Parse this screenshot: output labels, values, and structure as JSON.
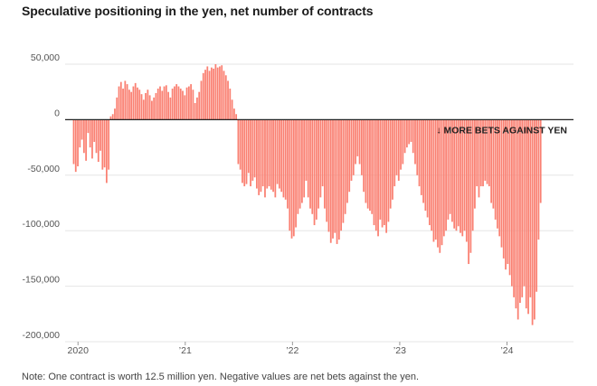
{
  "title": "Speculative positioning in the yen, net number of contracts",
  "note": "Note: One contract is worth 12.5 million yen. Negative values are net bets against the yen.",
  "colors": {
    "bar": "#fa8072",
    "zero_line": "#222222",
    "grid": "#e6e6e6",
    "text": "#555555"
  },
  "chart_data": {
    "type": "bar",
    "title": "Speculative positioning in the yen, net number of contracts",
    "xlabel": "",
    "ylabel": "",
    "ylim": [
      -200000,
      50000
    ],
    "yticks": [
      {
        "value": 50000,
        "label": "50,000"
      },
      {
        "value": 0,
        "label": "0"
      },
      {
        "value": -50000,
        "label": "-50,000"
      },
      {
        "value": -100000,
        "label": "-100,000"
      },
      {
        "value": -150000,
        "label": "-150,000"
      },
      {
        "value": -200000,
        "label": "-200,000"
      }
    ],
    "xrange": [
      2019.88,
      2024.62
    ],
    "xticks": [
      {
        "value": 2020,
        "label": "2020"
      },
      {
        "value": 2021,
        "label": "’21"
      },
      {
        "value": 2022,
        "label": "’22"
      },
      {
        "value": 2023,
        "label": "’23"
      },
      {
        "value": 2024,
        "label": "’24"
      }
    ],
    "grid": true,
    "annotation": "↓ MORE BETS AGAINST YEN",
    "series": [
      {
        "frequency": "weekly",
        "start": 2019.96,
        "step": 0.01918,
        "values": [
          -40000,
          -47000,
          -42000,
          -25000,
          -18000,
          -30000,
          -37000,
          -12000,
          -25000,
          -35000,
          -20000,
          -30000,
          -38000,
          -28000,
          -45000,
          -43000,
          -57000,
          -45000,
          3000,
          5000,
          10000,
          20000,
          30000,
          34000,
          28000,
          35000,
          32000,
          27000,
          25000,
          30000,
          33000,
          29000,
          27000,
          23000,
          18000,
          24000,
          27000,
          22000,
          17000,
          20000,
          24000,
          28000,
          30000,
          26000,
          30000,
          31000,
          25000,
          20000,
          28000,
          30000,
          32000,
          30000,
          28000,
          26000,
          22000,
          29000,
          30000,
          32000,
          27000,
          15000,
          20000,
          25000,
          35000,
          42000,
          45000,
          48000,
          44000,
          47000,
          46000,
          50000,
          47000,
          48000,
          49000,
          44000,
          40000,
          35000,
          28000,
          18000,
          10000,
          5000,
          -40000,
          -45000,
          -57000,
          -60000,
          -58000,
          -48000,
          -60000,
          -55000,
          -52000,
          -62000,
          -68000,
          -65000,
          -60000,
          -70000,
          -62000,
          -60000,
          -63000,
          -65000,
          -70000,
          -58000,
          -62000,
          -65000,
          -70000,
          -72000,
          -80000,
          -100000,
          -107000,
          -105000,
          -97000,
          -85000,
          -80000,
          -75000,
          -70000,
          -55000,
          -70000,
          -80000,
          -85000,
          -95000,
          -90000,
          -80000,
          -70000,
          -60000,
          -80000,
          -92000,
          -101000,
          -111000,
          -107000,
          -102000,
          -112000,
          -108000,
          -100000,
          -93000,
          -85000,
          -75000,
          -65000,
          -55000,
          -50000,
          -40000,
          -33000,
          -40000,
          -50000,
          -65000,
          -75000,
          -80000,
          -82000,
          -85000,
          -95000,
          -100000,
          -105000,
          -90000,
          -97000,
          -95000,
          -102000,
          -92000,
          -80000,
          -72000,
          -60000,
          -50000,
          -55000,
          -45000,
          -40000,
          -30000,
          -25000,
          -22000,
          -20000,
          -30000,
          -40000,
          -50000,
          -60000,
          -68000,
          -75000,
          -82000,
          -88000,
          -95000,
          -100000,
          -110000,
          -108000,
          -115000,
          -120000,
          -113000,
          -105000,
          -100000,
          -90000,
          -85000,
          -92000,
          -98000,
          -100000,
          -96000,
          -102000,
          -105000,
          -100000,
          -110000,
          -130000,
          -120000,
          -100000,
          -80000,
          -60000,
          -70000,
          -60000,
          -60000,
          -55000,
          -58000,
          -60000,
          -75000,
          -80000,
          -90000,
          -98000,
          -105000,
          -115000,
          -125000,
          -135000,
          -130000,
          -140000,
          -150000,
          -160000,
          -170000,
          -180000,
          -165000,
          -160000,
          -150000,
          -170000,
          -175000,
          -160000,
          -185000,
          -180000,
          -155000,
          -108000,
          -75000
        ]
      }
    ]
  }
}
